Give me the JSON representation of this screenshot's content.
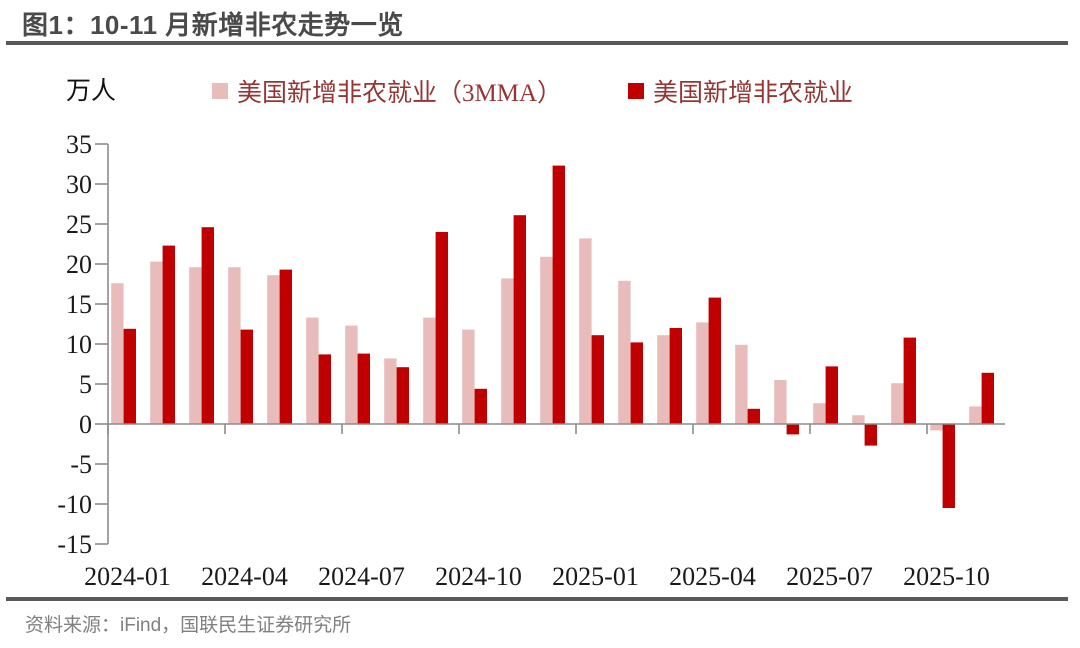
{
  "figure": {
    "title": "图1：10-11 月新增非农走势一览",
    "source": "资料来源：iFind，国联民生证券研究所"
  },
  "chart_data": {
    "type": "bar",
    "title": "图1：10-11 月新增非农走势一览",
    "unit": "万人",
    "categories": [
      "2024-01",
      "2024-02",
      "2024-03",
      "2024-04",
      "2024-05",
      "2024-06",
      "2024-07",
      "2024-08",
      "2024-09",
      "2024-10",
      "2024-11",
      "2024-12",
      "2025-01",
      "2025-02",
      "2025-03",
      "2025-04",
      "2025-05",
      "2025-06",
      "2025-07",
      "2025-08",
      "2025-09",
      "2025-10",
      "2025-11"
    ],
    "x_tick_labels": [
      "2024-01",
      "2024-04",
      "2024-07",
      "2024-10",
      "2025-01",
      "2025-04",
      "2025-07",
      "2025-10"
    ],
    "ylim": [
      -15,
      35
    ],
    "y_tick_step": 5,
    "grid": false,
    "legend_position": "top",
    "series": [
      {
        "name": "美国新增非农就业（3MMA）",
        "color": "#E9BCBC",
        "values": [
          17.6,
          20.3,
          19.6,
          19.6,
          18.6,
          13.3,
          12.3,
          8.2,
          13.3,
          11.8,
          18.2,
          20.9,
          23.2,
          17.9,
          11.1,
          12.7,
          9.9,
          5.5,
          2.6,
          1.1,
          5.1,
          -0.8,
          2.2
        ]
      },
      {
        "name": "美国新增非农就业",
        "color": "#C00000",
        "values": [
          11.9,
          22.3,
          24.6,
          11.8,
          19.3,
          8.7,
          8.8,
          7.1,
          24.0,
          4.4,
          26.1,
          32.3,
          11.1,
          10.2,
          12.0,
          15.8,
          1.9,
          -1.3,
          7.2,
          -2.7,
          10.8,
          -10.5,
          6.4
        ]
      }
    ],
    "colors": {
      "axis": "#8c8c8c",
      "tick_label": "#1a1a1a",
      "legend_text": "#943634",
      "title_text": "#4a4a4a",
      "rule": "#595959",
      "source_text": "#808080"
    }
  }
}
